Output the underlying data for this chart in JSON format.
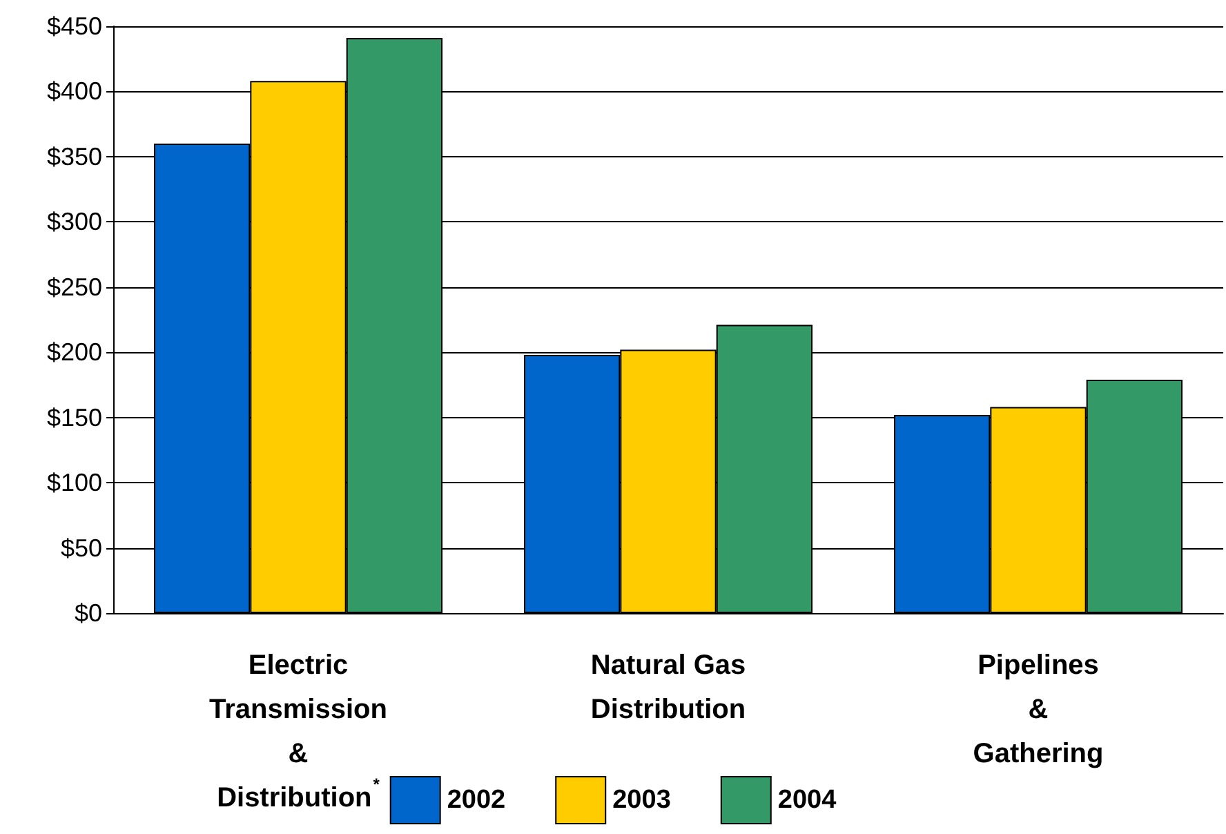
{
  "chart_data": {
    "type": "bar",
    "categories": [
      "Electric\nTransmission\n&\nDistribution$^{*}$",
      "Natural Gas\nDistribution",
      "Pipelines\n&\nGathering"
    ],
    "series": [
      {
        "name": "2002",
        "color": "#0066cc",
        "values": [
          360,
          198,
          152
        ]
      },
      {
        "name": "2003",
        "color": "#ffcc00",
        "values": [
          408,
          202,
          158
        ]
      },
      {
        "name": "2004",
        "color": "#339966",
        "values": [
          441,
          221,
          179
        ]
      }
    ],
    "ylim": [
      0,
      450
    ],
    "yticks": [
      {
        "value": 0,
        "label": "$0"
      },
      {
        "value": 50,
        "label": "$50"
      },
      {
        "value": 100,
        "label": "$100"
      },
      {
        "value": 150,
        "label": "$150"
      },
      {
        "value": 200,
        "label": "$200"
      },
      {
        "value": 250,
        "label": "$250"
      },
      {
        "value": 300,
        "label": "$300"
      },
      {
        "value": 350,
        "label": "$350"
      },
      {
        "value": 400,
        "label": "$400"
      },
      {
        "value": 450,
        "label": "$450"
      }
    ],
    "grid": "y",
    "legend": "bottom"
  }
}
